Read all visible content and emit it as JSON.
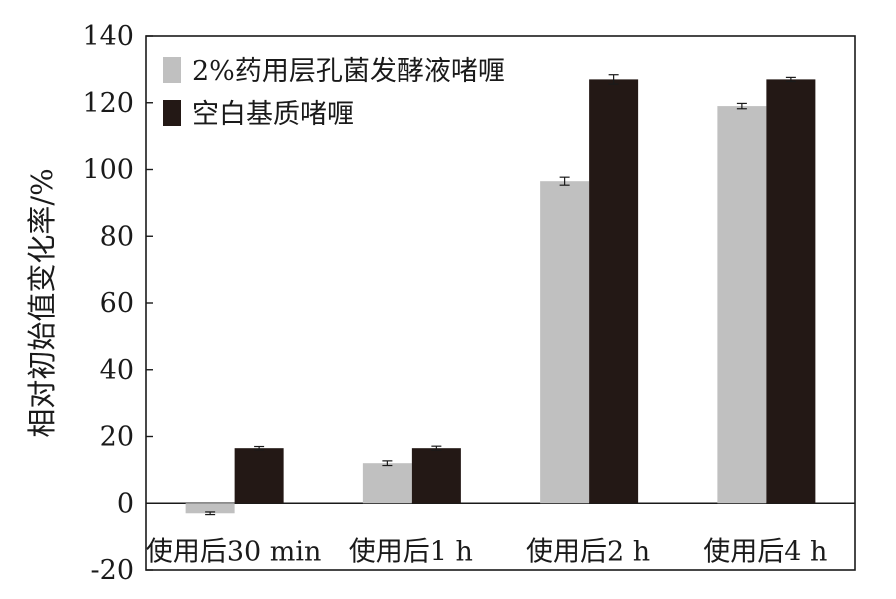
{
  "chart_data": {
    "type": "bar",
    "ylabel": "相对初始值变化率/%",
    "ylim": [
      -20,
      140
    ],
    "yticks": [
      "-20",
      "0",
      "20",
      "40",
      "60",
      "80",
      "100",
      "120",
      "140"
    ],
    "categories": [
      "使用后30 min",
      "使用后1 h",
      "使用后2 h",
      "使用后4 h"
    ],
    "series": [
      {
        "name": "2%药用层孔菌发酵液啫喱",
        "color": "#c0c0c0",
        "values": [
          -3,
          12,
          96.5,
          119
        ],
        "errors": [
          0.4,
          0.7,
          1.2,
          0.8
        ]
      },
      {
        "name": "空白基质啫喱",
        "color": "#231815",
        "values": [
          16.5,
          16.5,
          127,
          127
        ],
        "errors": [
          0.5,
          0.6,
          1.4,
          0.6
        ]
      }
    ],
    "grid": false,
    "legend_position": "top-left"
  }
}
